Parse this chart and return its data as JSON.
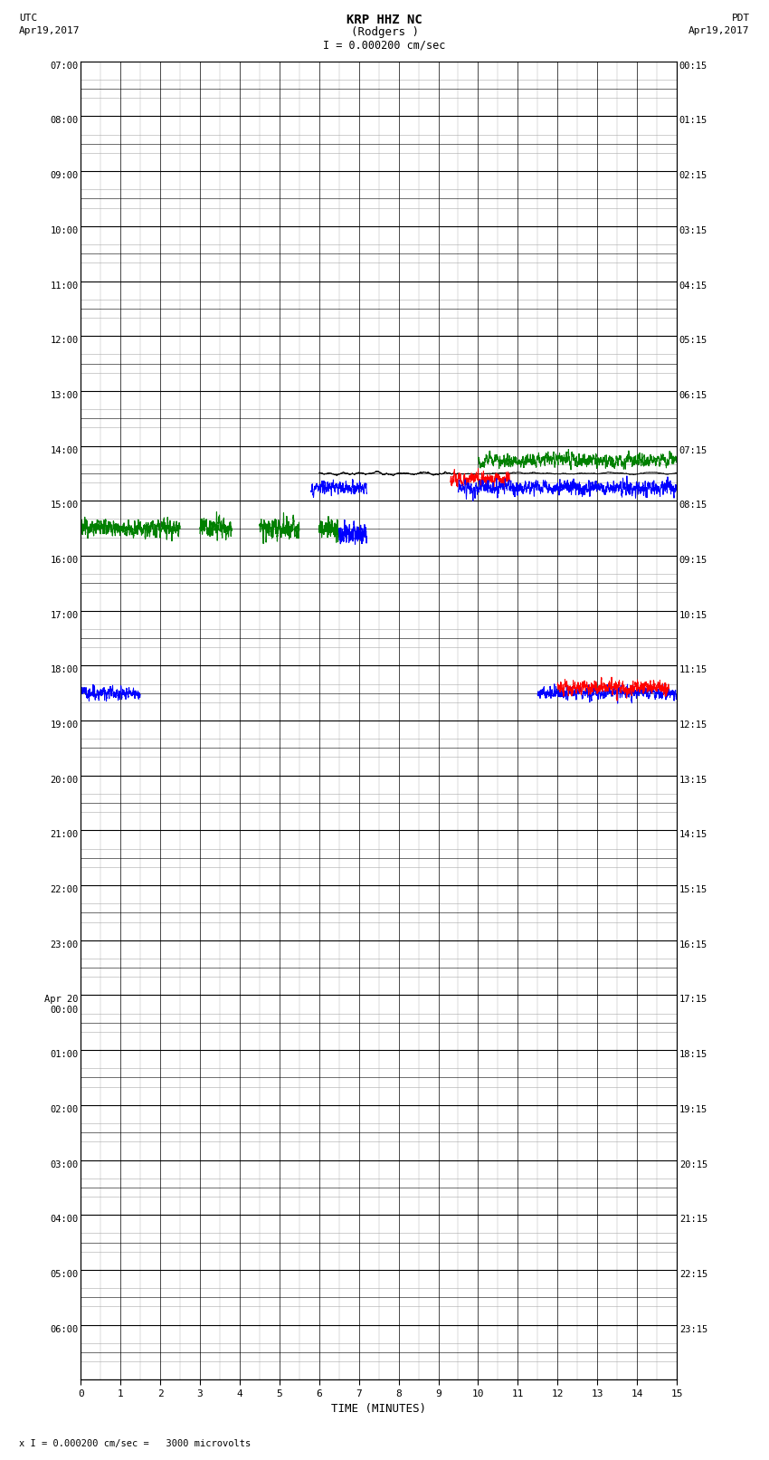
{
  "title_line1": "KRP HHZ NC",
  "title_line2": "(Rodgers )",
  "scale_bar_text": "I = 0.000200 cm/sec",
  "left_label_top": "UTC",
  "left_label_date": "Apr19,2017",
  "right_label_top": "PDT",
  "right_label_date": "Apr19,2017",
  "bottom_label": "TIME (MINUTES)",
  "footer_text": "x I = 0.000200 cm/sec =   3000 microvolts",
  "x_min": 0,
  "x_max": 15,
  "x_ticks": [
    0,
    1,
    2,
    3,
    4,
    5,
    6,
    7,
    8,
    9,
    10,
    11,
    12,
    13,
    14,
    15
  ],
  "num_rows": 24,
  "sub_rows": 3,
  "utc_labels": [
    "07:00",
    "08:00",
    "09:00",
    "10:00",
    "11:00",
    "12:00",
    "13:00",
    "14:00",
    "15:00",
    "16:00",
    "17:00",
    "18:00",
    "19:00",
    "20:00",
    "21:00",
    "22:00",
    "23:00",
    "Apr 20\n00:00",
    "01:00",
    "02:00",
    "03:00",
    "04:00",
    "05:00",
    "06:00"
  ],
  "pdt_labels": [
    "00:15",
    "01:15",
    "02:15",
    "03:15",
    "04:15",
    "05:15",
    "06:15",
    "07:15",
    "08:15",
    "09:15",
    "10:15",
    "11:15",
    "12:15",
    "13:15",
    "14:15",
    "15:15",
    "16:15",
    "17:15",
    "18:15",
    "19:15",
    "20:15",
    "21:15",
    "22:15",
    "23:15"
  ],
  "background_color": "#ffffff",
  "major_grid_color": "#000000",
  "minor_grid_color": "#aaaaaa",
  "vert_grid_color": "#888888"
}
